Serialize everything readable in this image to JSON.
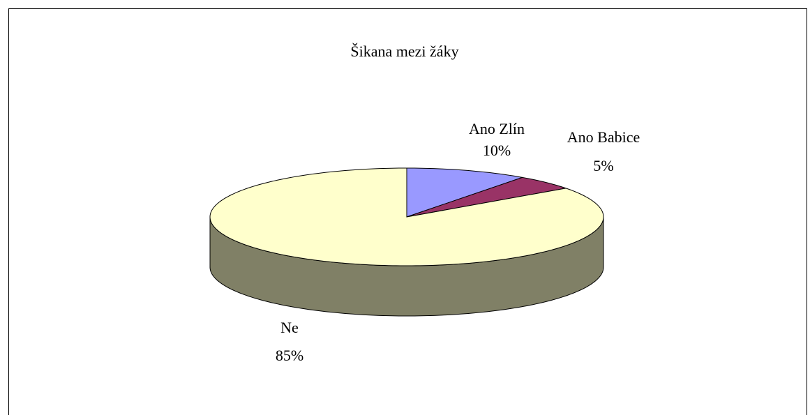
{
  "chart_data": {
    "type": "pie",
    "title": "Šikana mezi žáky",
    "categories": [
      "Ano Zlín",
      "Ano Babice",
      "Ne"
    ],
    "values": [
      10,
      5,
      85
    ],
    "value_labels": [
      "10%",
      "5%",
      "85%"
    ],
    "colors": [
      "#9999ff",
      "#993366",
      "#ffffcc"
    ]
  }
}
